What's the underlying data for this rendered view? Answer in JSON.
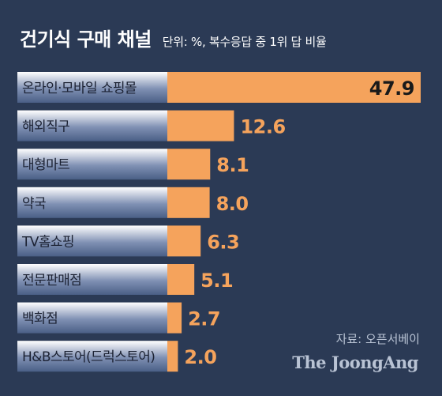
{
  "header": {
    "title": "건기식 구매 채널",
    "subtitle": "단위: %, 복수응답 중 1위 답 비율"
  },
  "footer": {
    "source": "자료: 오픈서베이",
    "brand": "The JoongAng"
  },
  "colors": {
    "background": "#2b3a55",
    "bar": "#f5a35c",
    "label_panel_top": "#ffffff",
    "label_panel_bottom": "#4a5f86",
    "value_text": "#f5a35c",
    "value_text_inside": "#1a1a1a"
  },
  "chart_data": {
    "type": "bar",
    "orientation": "horizontal",
    "categories": [
      "온라인·모바일 쇼핑몰",
      "해외직구",
      "대형마트",
      "약국",
      "TV홈쇼핑",
      "전문판매점",
      "백화점",
      "H&B스토어(드럭스토어)"
    ],
    "values": [
      47.9,
      12.6,
      8.1,
      8.0,
      6.3,
      5.1,
      2.7,
      2.0
    ],
    "value_labels": [
      "47.9",
      "12.6",
      "8.1",
      "8.0",
      "6.3",
      "5.1",
      "2.7",
      "2.0"
    ],
    "title": "건기식 구매 채널",
    "unit": "%",
    "xlim": [
      0,
      47.9
    ],
    "grid": false,
    "legend": "none"
  }
}
